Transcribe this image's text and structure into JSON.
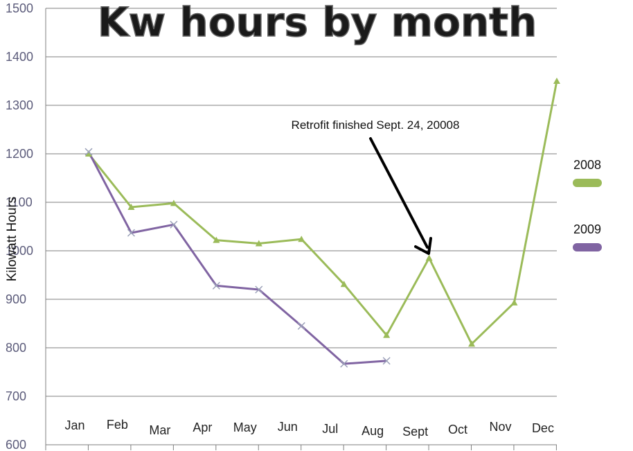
{
  "chart_data": {
    "type": "line",
    "title": "Kw hours by month",
    "ylabel": "Kilowatt Hours",
    "xlabel": "",
    "ylim": [
      600,
      1500
    ],
    "yticks": [
      600,
      700,
      800,
      900,
      1000,
      1100,
      1200,
      1300,
      1400,
      1500
    ],
    "categories": [
      "Jan",
      "Feb",
      "Mar",
      "Apr",
      "May",
      "Jun",
      "Jul",
      "Aug",
      "Sept",
      "Oct",
      "Nov",
      "Dec"
    ],
    "grid": true,
    "legend_position": "right",
    "series": [
      {
        "name": "2008",
        "color": "#9bbb59",
        "marker": "triangle",
        "values": [
          1200,
          1090,
          1098,
          1022,
          1015,
          1024,
          931,
          826,
          985,
          808,
          893,
          1350
        ]
      },
      {
        "name": "2009",
        "color": "#8064a2",
        "marker": "x",
        "values": [
          1204,
          1037,
          1054,
          928,
          920,
          845,
          767,
          773,
          null,
          null,
          null,
          null
        ]
      }
    ],
    "annotation": {
      "text": "Retrofit finished Sept. 24, 20008",
      "category": "Sept"
    }
  }
}
